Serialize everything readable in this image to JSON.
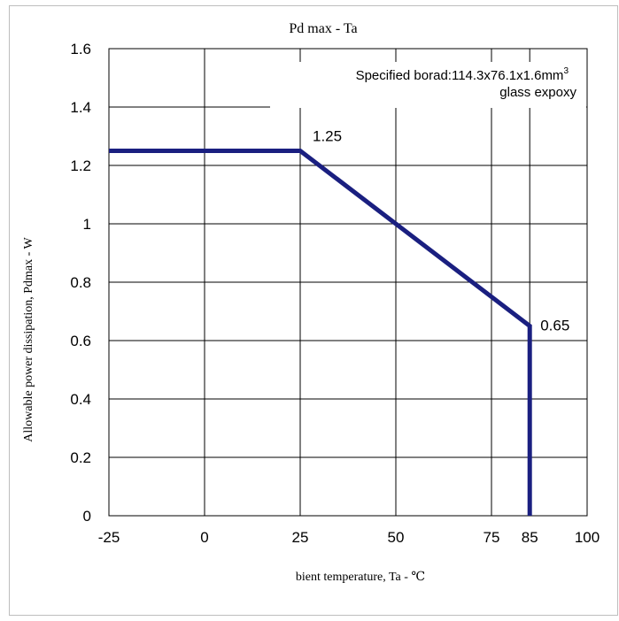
{
  "chart_data": {
    "type": "line",
    "title": "Pd max - Ta",
    "xlabel": "bient temperature,  Ta - ℃",
    "ylabel": "Allowable  power dissipation,  Pdmax - W",
    "xlim": [
      -25,
      100
    ],
    "ylim": [
      0,
      1.6
    ],
    "x_ticks": [
      "-25",
      "0",
      "25",
      "50",
      "75",
      "85",
      "100"
    ],
    "y_ticks": [
      "0",
      "0.2",
      "0.4",
      "0.6",
      "0.8",
      "1",
      "1.2",
      "1.4",
      "1.6"
    ],
    "grid": true,
    "series": [
      {
        "points": [
          [
            -25,
            1.25
          ],
          [
            25,
            1.25
          ],
          [
            85,
            0.65
          ],
          [
            85,
            0
          ]
        ],
        "color": "#1a1f80"
      }
    ],
    "annotations": [
      {
        "text": "1.25",
        "x": 25,
        "y": 1.25
      },
      {
        "text": "0.65",
        "x": 85,
        "y": 0.65
      }
    ],
    "board_note": {
      "line1": "Specified borad:114.3x76.1x1.6mm",
      "sup": "3",
      "line2": "glass expoxy"
    }
  }
}
